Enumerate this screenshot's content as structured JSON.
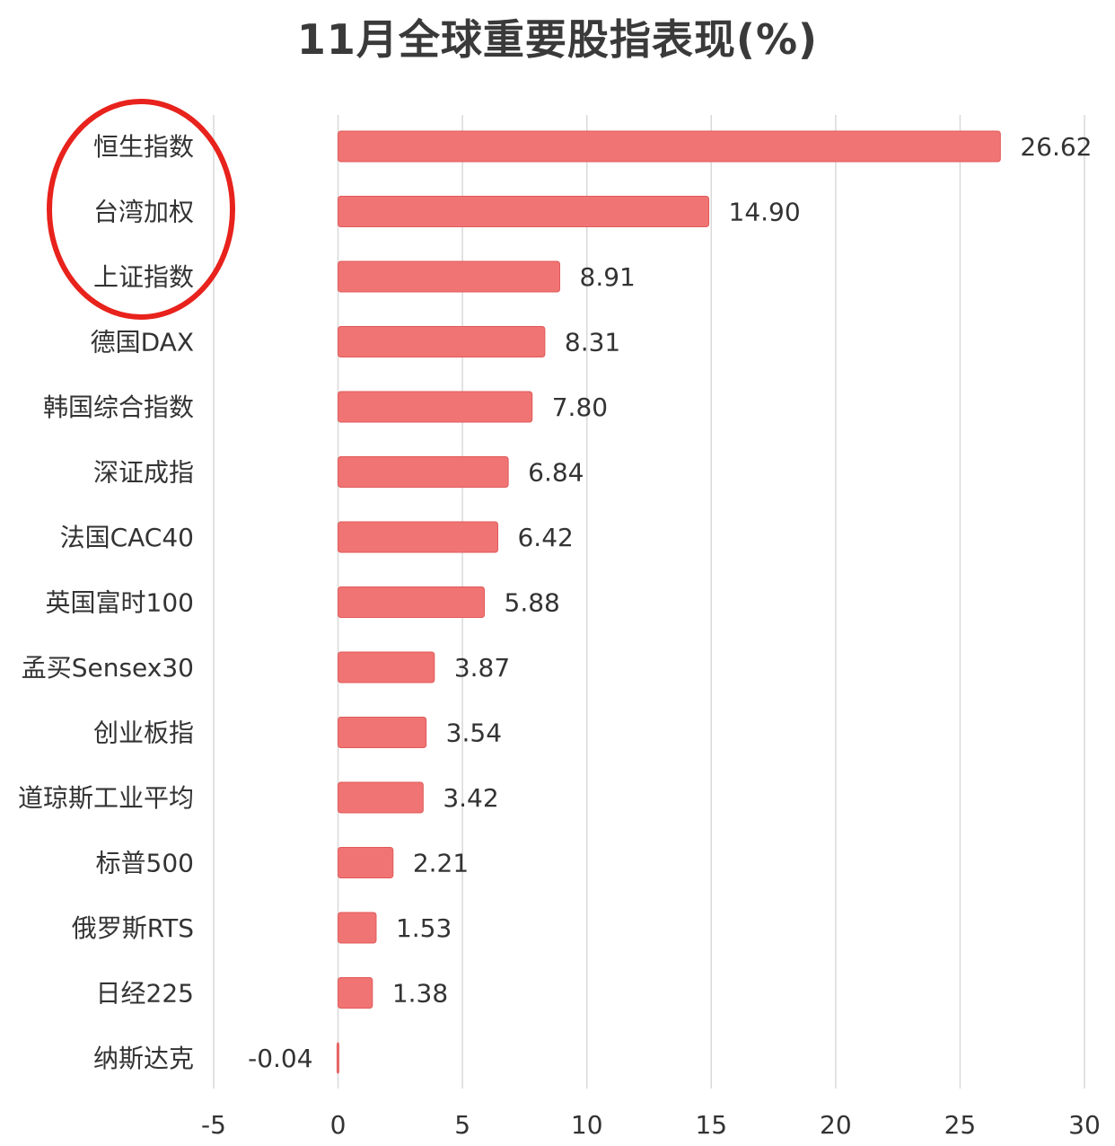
{
  "chart_data": {
    "type": "bar",
    "orientation": "horizontal",
    "title": "11月全球重要股指表现(%)",
    "categories": [
      "恒生指数",
      "台湾加权",
      "上证指数",
      "德国DAX",
      "韩国综合指数",
      "深证成指",
      "法国CAC40",
      "英国富时100",
      "孟买Sensex30",
      "创业板指",
      "道琼斯工业平均",
      "标普500",
      "俄罗斯RTS",
      "日经225",
      "纳斯达克"
    ],
    "values": [
      26.62,
      14.9,
      8.91,
      8.31,
      7.8,
      6.84,
      6.42,
      5.88,
      3.87,
      3.54,
      3.42,
      2.21,
      1.53,
      1.38,
      -0.04
    ],
    "value_labels": [
      "26.62",
      "14.90",
      "8.91",
      "8.31",
      "7.80",
      "6.84",
      "6.42",
      "5.88",
      "3.87",
      "3.54",
      "3.42",
      "2.21",
      "1.53",
      "1.38",
      "-0.04"
    ],
    "xlim": [
      -5,
      30
    ],
    "xticks": [
      -5,
      0,
      5,
      10,
      15,
      20,
      25,
      30
    ],
    "xtick_labels": [
      "-5",
      "0",
      "5",
      "10",
      "15",
      "20",
      "25",
      "30"
    ],
    "grid": "vertical",
    "highlight": {
      "shape": "ellipse",
      "color": "#e8221c",
      "categories": [
        "恒生指数",
        "台湾加权",
        "上证指数"
      ]
    },
    "colors": {
      "bar": "#f07473",
      "bar_edge": "#e05a5a",
      "grid": "#d9d9d9",
      "text": "#333333",
      "title": "#3a3a3a"
    }
  }
}
